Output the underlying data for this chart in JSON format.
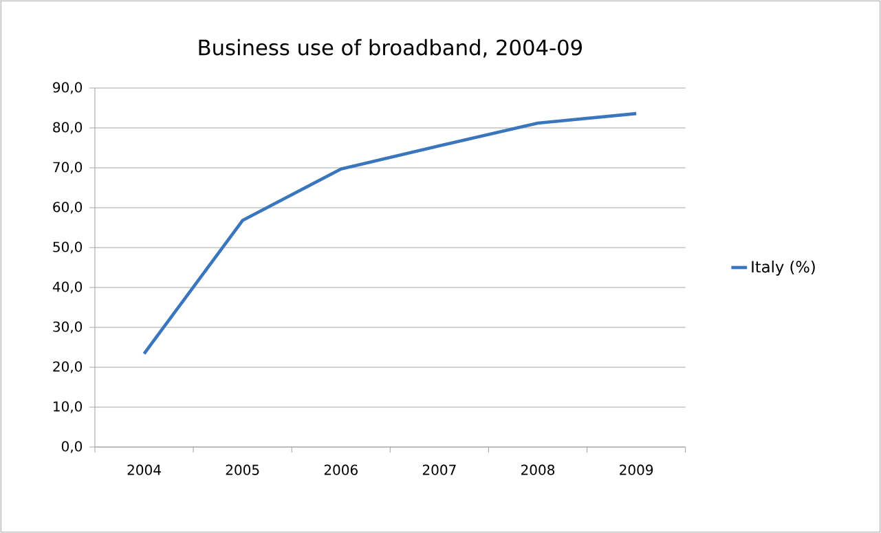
{
  "chart_data": {
    "type": "line",
    "title": "Business use of broadband,  2004-09",
    "categories": [
      "2004",
      "2005",
      "2006",
      "2007",
      "2008",
      "2009"
    ],
    "series": [
      {
        "name": "Italy (%)",
        "color": "#3a76bd",
        "values": [
          23.4,
          56.8,
          69.7,
          75.5,
          81.2,
          83.6
        ]
      }
    ],
    "ylim": [
      0,
      90
    ],
    "yticks": [
      {
        "value": 0,
        "label": "0,0"
      },
      {
        "value": 10,
        "label": "10,0"
      },
      {
        "value": 20,
        "label": "20,0"
      },
      {
        "value": 30,
        "label": "30,0"
      },
      {
        "value": 40,
        "label": "40,0"
      },
      {
        "value": 50,
        "label": "50,0"
      },
      {
        "value": 60,
        "label": "60,0"
      },
      {
        "value": 70,
        "label": "70,0"
      },
      {
        "value": 80,
        "label": "80,0"
      },
      {
        "value": 90,
        "label": "90,0"
      }
    ],
    "grid": "y",
    "legend": "right",
    "marker": "none",
    "line_style": "solid"
  }
}
